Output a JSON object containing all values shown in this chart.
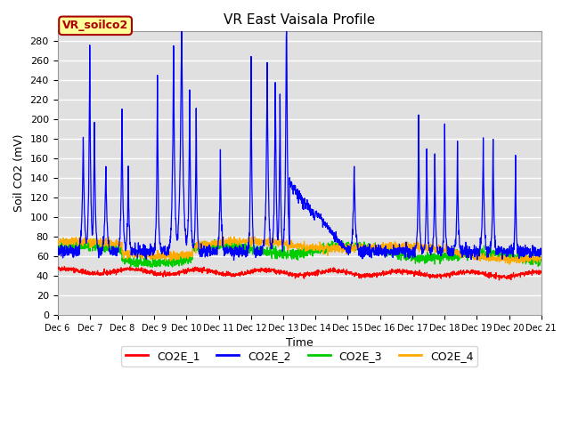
{
  "title": "VR East Vaisala Profile",
  "xlabel": "Time",
  "ylabel": "Soil CO2 (mV)",
  "ylim": [
    0,
    290
  ],
  "yticks": [
    0,
    20,
    40,
    60,
    80,
    100,
    120,
    140,
    160,
    180,
    200,
    220,
    240,
    260,
    280
  ],
  "x_tick_labels": [
    "Dec 6",
    "Dec 7",
    "Dec 8",
    "Dec 9",
    "Dec 10",
    "Dec 11",
    "Dec 12",
    "Dec 13",
    "Dec 14",
    "Dec 15",
    "Dec 16",
    "Dec 17",
    "Dec 18",
    "Dec 19",
    "Dec 20",
    "Dec 21"
  ],
  "plot_bg_color": "#e0e0e0",
  "fig_bg_color": "#ffffff",
  "grid_color": "#ffffff",
  "colors": {
    "CO2E_1": "#ff0000",
    "CO2E_2": "#0000ff",
    "CO2E_3": "#00cc00",
    "CO2E_4": "#ffaa00"
  },
  "annotation_box": {
    "text": "VR_soilco2",
    "facecolor": "#ffff99",
    "edgecolor": "#aa0000",
    "textcolor": "#aa0000",
    "fontsize": 9
  },
  "legend_fontsize": 9,
  "title_fontsize": 11,
  "axis_fontsize": 9,
  "tick_fontsize": 8
}
